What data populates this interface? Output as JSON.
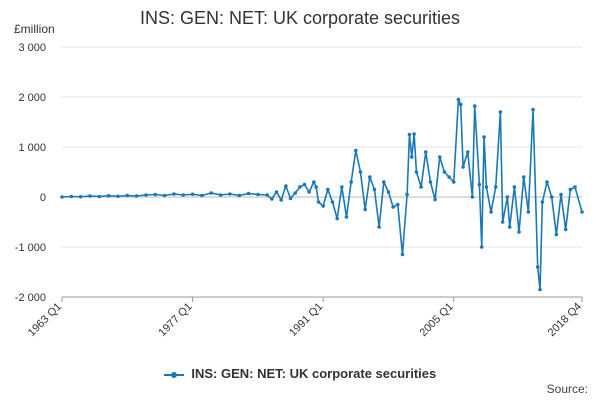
{
  "title": "INS: GEN: NET: UK corporate securities",
  "unit_label": "£million",
  "source_label": "Source:",
  "legend": [
    {
      "label": "INS: GEN: NET: UK corporate securities",
      "color": "#1a78b7"
    }
  ],
  "chart_data": {
    "type": "line",
    "title": "INS: GEN: NET: UK corporate securities",
    "ylabel": "£million",
    "xlabel": "",
    "x_range": [
      "1963 Q1",
      "2018 Q4"
    ],
    "ylim": [
      -2000,
      3000
    ],
    "y_ticks": [
      3000,
      2000,
      1000,
      0,
      -1000,
      -2000
    ],
    "y_tick_labels": [
      "3 000",
      "2 000",
      "1 000",
      "0",
      "-1 000",
      "-2 000"
    ],
    "x_tick_labels": [
      "1963 Q1",
      "1977 Q1",
      "1991 Q1",
      "2005 Q1",
      "2018 Q4"
    ],
    "grid": "horizontal",
    "legend_position": "bottom",
    "series": [
      {
        "name": "INS: GEN: NET: UK corporate securities",
        "color": "#1a78b7",
        "points": [
          [
            "1963 Q1",
            0
          ],
          [
            "1964 Q1",
            10
          ],
          [
            "1965 Q1",
            5
          ],
          [
            "1966 Q1",
            20
          ],
          [
            "1967 Q1",
            10
          ],
          [
            "1968 Q1",
            25
          ],
          [
            "1969 Q1",
            15
          ],
          [
            "1970 Q1",
            30
          ],
          [
            "1971 Q1",
            20
          ],
          [
            "1972 Q1",
            40
          ],
          [
            "1973 Q1",
            50
          ],
          [
            "1974 Q1",
            30
          ],
          [
            "1975 Q1",
            60
          ],
          [
            "1976 Q1",
            40
          ],
          [
            "1977 Q1",
            55
          ],
          [
            "1978 Q1",
            30
          ],
          [
            "1979 Q1",
            80
          ],
          [
            "1980 Q1",
            40
          ],
          [
            "1981 Q1",
            60
          ],
          [
            "1982 Q1",
            30
          ],
          [
            "1983 Q1",
            70
          ],
          [
            "1984 Q1",
            50
          ],
          [
            "1985 Q1",
            40
          ],
          [
            "1985 Q3",
            -40
          ],
          [
            "1986 Q1",
            100
          ],
          [
            "1986 Q3",
            -60
          ],
          [
            "1987 Q1",
            220
          ],
          [
            "1987 Q3",
            -30
          ],
          [
            "1988 Q1",
            80
          ],
          [
            "1988 Q3",
            200
          ],
          [
            "1989 Q1",
            250
          ],
          [
            "1989 Q3",
            100
          ],
          [
            "1990 Q1",
            300
          ],
          [
            "1990 Q2",
            200
          ],
          [
            "1990 Q3",
            -100
          ],
          [
            "1991 Q1",
            -180
          ],
          [
            "1991 Q3",
            150
          ],
          [
            "1992 Q1",
            -100
          ],
          [
            "1992 Q3",
            -430
          ],
          [
            "1993 Q1",
            200
          ],
          [
            "1993 Q3",
            -400
          ],
          [
            "1994 Q1",
            300
          ],
          [
            "1994 Q3",
            930
          ],
          [
            "1995 Q1",
            500
          ],
          [
            "1995 Q3",
            -250
          ],
          [
            "1996 Q1",
            400
          ],
          [
            "1996 Q3",
            150
          ],
          [
            "1997 Q1",
            -600
          ],
          [
            "1997 Q3",
            300
          ],
          [
            "1998 Q1",
            100
          ],
          [
            "1998 Q3",
            -200
          ],
          [
            "1999 Q1",
            -150
          ],
          [
            "1999 Q3",
            -1150
          ],
          [
            "2000 Q1",
            50
          ],
          [
            "2000 Q2",
            1250
          ],
          [
            "2000 Q3",
            800
          ],
          [
            "2000 Q4",
            1260
          ],
          [
            "2001 Q1",
            500
          ],
          [
            "2001 Q3",
            200
          ],
          [
            "2002 Q1",
            900
          ],
          [
            "2002 Q3",
            300
          ],
          [
            "2003 Q1",
            -50
          ],
          [
            "2003 Q3",
            800
          ],
          [
            "2004 Q1",
            500
          ],
          [
            "2004 Q3",
            400
          ],
          [
            "2005 Q1",
            300
          ],
          [
            "2005 Q3",
            1950
          ],
          [
            "2005 Q4",
            1850
          ],
          [
            "2006 Q1",
            600
          ],
          [
            "2006 Q3",
            900
          ],
          [
            "2007 Q1",
            0
          ],
          [
            "2007 Q2",
            1820
          ],
          [
            "2007 Q4",
            250
          ],
          [
            "2008 Q1",
            -1000
          ],
          [
            "2008 Q2",
            1200
          ],
          [
            "2008 Q3",
            200
          ],
          [
            "2009 Q1",
            -300
          ],
          [
            "2009 Q3",
            200
          ],
          [
            "2010 Q1",
            1700
          ],
          [
            "2010 Q2",
            -500
          ],
          [
            "2010 Q4",
            0
          ],
          [
            "2011 Q1",
            -600
          ],
          [
            "2011 Q3",
            200
          ],
          [
            "2012 Q1",
            -700
          ],
          [
            "2012 Q3",
            400
          ],
          [
            "2013 Q1",
            -300
          ],
          [
            "2013 Q3",
            1750
          ],
          [
            "2014 Q1",
            -1400
          ],
          [
            "2014 Q2",
            -1850
          ],
          [
            "2014 Q3",
            -100
          ],
          [
            "2015 Q1",
            300
          ],
          [
            "2015 Q3",
            0
          ],
          [
            "2016 Q1",
            -750
          ],
          [
            "2016 Q3",
            50
          ],
          [
            "2017 Q1",
            -650
          ],
          [
            "2017 Q3",
            150
          ],
          [
            "2018 Q1",
            200
          ],
          [
            "2018 Q4",
            -300
          ]
        ]
      }
    ]
  }
}
